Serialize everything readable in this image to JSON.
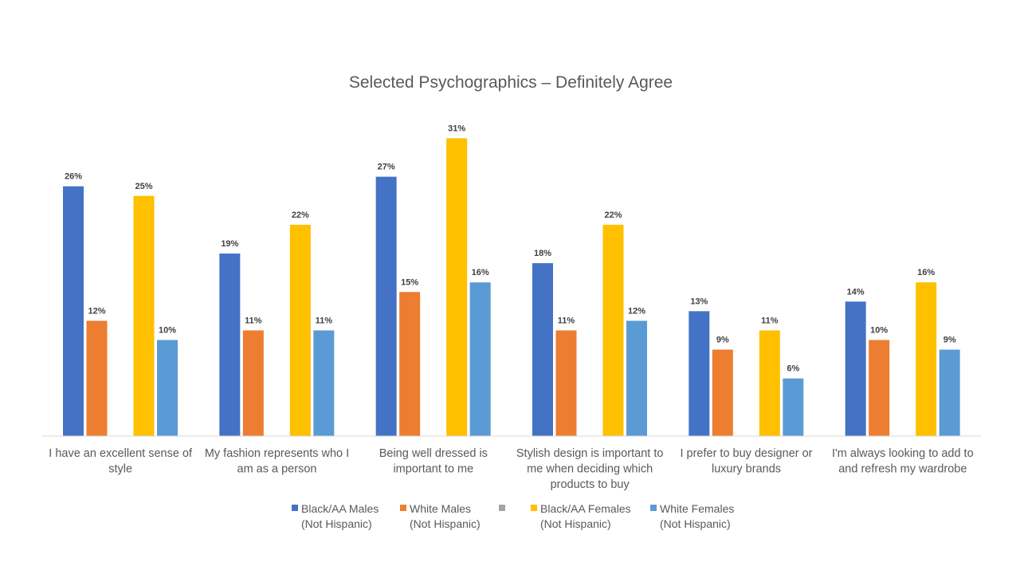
{
  "chart_data": {
    "type": "bar",
    "title": "Selected Psychographics – Definitely Agree",
    "categories": [
      "I have an excellent sense of style",
      "My fashion represents who I am as a person",
      "Being well dressed is important to me",
      "Stylish design is important to me when deciding which products to buy",
      "I prefer to buy designer or luxury brands",
      "I'm always looking to add to and refresh my wardrobe"
    ],
    "category_lines": [
      [
        "I have an excellent sense of",
        "style"
      ],
      [
        "My fashion represents who I",
        "am as a person"
      ],
      [
        "Being well dressed is",
        "important to me"
      ],
      [
        "Stylish design is important to",
        "me when deciding which",
        "products to buy"
      ],
      [
        "I prefer to buy designer or",
        "luxury brands"
      ],
      [
        "I'm always looking to add to",
        "and refresh my wardrobe"
      ]
    ],
    "series": [
      {
        "name": "Black/AA Males (Not Hispanic)",
        "legend_lines": [
          "Black/AA Males",
          "(Not Hispanic)"
        ],
        "color": "#4472C4",
        "values": [
          26,
          19,
          27,
          18,
          13,
          14
        ],
        "labels": [
          "26%",
          "19%",
          "27%",
          "18%",
          "13%",
          "14%"
        ]
      },
      {
        "name": "White Males (Not Hispanic)",
        "legend_lines": [
          "White Males",
          "(Not Hispanic)"
        ],
        "color": "#ED7D31",
        "values": [
          12,
          11,
          15,
          11,
          9,
          10
        ],
        "labels": [
          "12%",
          "11%",
          "15%",
          "11%",
          "9%",
          "10%"
        ]
      },
      {
        "name": "",
        "legend_lines": [],
        "color": "#A5A5A5",
        "values": [
          null,
          null,
          null,
          null,
          null,
          null
        ],
        "labels": []
      },
      {
        "name": "Black/AA Females (Not Hispanic)",
        "legend_lines": [
          "Black/AA Females",
          "(Not Hispanic)"
        ],
        "color": "#FFC000",
        "values": [
          25,
          22,
          31,
          22,
          11,
          16
        ],
        "labels": [
          "25%",
          "22%",
          "31%",
          "22%",
          "11%",
          "16%"
        ]
      },
      {
        "name": "White Females (Not Hispanic)",
        "legend_lines": [
          "White Females",
          "(Not Hispanic)"
        ],
        "color": "#5B9BD5",
        "values": [
          10,
          11,
          16,
          12,
          6,
          9
        ],
        "labels": [
          "10%",
          "11%",
          "16%",
          "12%",
          "6%",
          "9%"
        ]
      }
    ],
    "ylim": [
      0,
      32
    ],
    "grid": false,
    "legend_position": "bottom",
    "axis_color": "#D9D9D9"
  }
}
